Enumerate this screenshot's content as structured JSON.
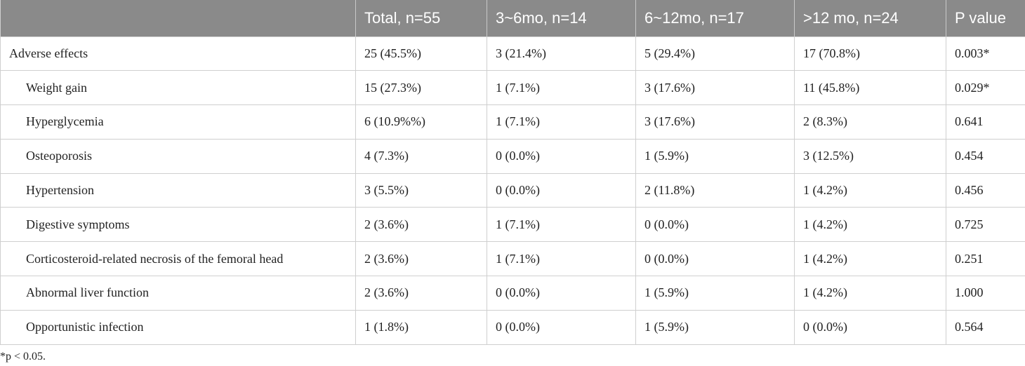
{
  "table": {
    "headers": [
      "Total, n=55",
      "3~6mo, n=14",
      "6~12mo, n=17",
      ">12 mo, n=24",
      "P value"
    ],
    "rows": [
      [
        "Adverse effects",
        "25 (45.5%)",
        "3 (21.4%)",
        "5 (29.4%)",
        "17 (70.8%)",
        "0.003*"
      ],
      [
        "Weight gain",
        "15 (27.3%)",
        "1 (7.1%)",
        "3 (17.6%)",
        "11 (45.8%)",
        "0.029*"
      ],
      [
        "Hyperglycemia",
        "6 (10.9%%)",
        "1 (7.1%)",
        "3 (17.6%)",
        "2 (8.3%)",
        "0.641"
      ],
      [
        "Osteoporosis",
        "4 (7.3%)",
        "0 (0.0%)",
        "1 (5.9%)",
        "3 (12.5%)",
        "0.454"
      ],
      [
        "Hypertension",
        "3 (5.5%)",
        "0 (0.0%)",
        "2 (11.8%)",
        "1 (4.2%)",
        "0.456"
      ],
      [
        "Digestive symptoms",
        "2 (3.6%)",
        "1 (7.1%)",
        "0 (0.0%)",
        "1 (4.2%)",
        "0.725"
      ],
      [
        "Corticosteroid-related necrosis of the femoral head",
        "2 (3.6%)",
        "1 (7.1%)",
        "0 (0.0%)",
        "1 (4.2%)",
        "0.251"
      ],
      [
        "Abnormal liver function",
        "2 (3.6%)",
        "0 (0.0%)",
        "1 (5.9%)",
        "1 (4.2%)",
        "1.000"
      ],
      [
        "Opportunistic infection",
        "1 (1.8%)",
        "0 (0.0%)",
        "1 (5.9%)",
        "0 (0.0%)",
        "0.564"
      ]
    ],
    "footnote": "*p < 0.05."
  }
}
